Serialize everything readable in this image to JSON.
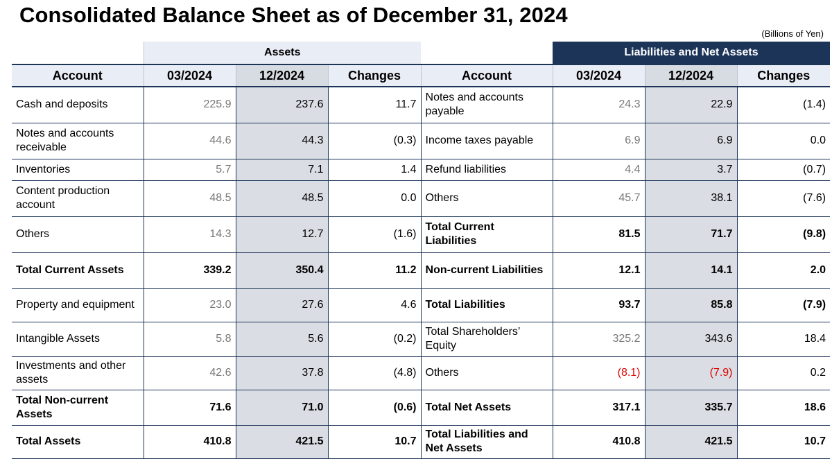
{
  "title": "Consolidated Balance Sheet as of December 31, 2024",
  "unit": "(Billions of Yen)",
  "assets_header": "Assets",
  "liabilities_header": "Liabilities and Net Assets",
  "columns": {
    "account": "Account",
    "prev": "03/2024",
    "cur": "12/2024",
    "changes": "Changes"
  },
  "rows": [
    {
      "a": [
        "Cash and deposits",
        "225.9",
        "237.6",
        "11.7"
      ],
      "l": [
        "Notes and accounts payable",
        "24.3",
        "22.9",
        "(1.4)"
      ]
    },
    {
      "a": [
        "Notes and accounts receivable",
        "44.6",
        "44.3",
        "(0.3)"
      ],
      "l": [
        "Income taxes payable",
        "6.9",
        "6.9",
        "0.0"
      ]
    },
    {
      "a": [
        "Inventories",
        "5.7",
        "7.1",
        "1.4"
      ],
      "l": [
        "Refund liabilities",
        "4.4",
        "3.7",
        "(0.7)"
      ]
    },
    {
      "a": [
        "Content production account",
        "48.5",
        "48.5",
        "0.0"
      ],
      "l": [
        "Others",
        "45.7",
        "38.1",
        "(7.6)"
      ]
    },
    {
      "a": [
        "Others",
        "14.3",
        "12.7",
        "(1.6)"
      ],
      "l": [
        "Total Current Liabilities",
        "81.5",
        "71.7",
        "(9.8)"
      ]
    },
    {
      "a": [
        "Total Current Assets",
        "339.2",
        "350.4",
        "11.2"
      ],
      "l": [
        "Non-current Liabilities",
        "12.1",
        "14.1",
        "2.0"
      ]
    },
    {
      "a": [
        "Property and equipment",
        "23.0",
        "27.6",
        "4.6"
      ],
      "l": [
        "Total Liabilities",
        "93.7",
        "85.8",
        "(7.9)"
      ]
    },
    {
      "a": [
        "Intangible Assets",
        "5.8",
        "5.6",
        "(0.2)"
      ],
      "l": [
        "Total Shareholders’ Equity",
        "325.2",
        "343.6",
        "18.4"
      ]
    },
    {
      "a": [
        "Investments and other assets",
        "42.6",
        "37.8",
        "(4.8)"
      ],
      "l": [
        "Others",
        "(8.1)",
        "(7.9)",
        "0.2"
      ]
    },
    {
      "a": [
        "Total Non-current Assets",
        "71.6",
        "71.0",
        "(0.6)"
      ],
      "l": [
        "Total Net Assets",
        "317.1",
        "335.7",
        "18.6"
      ]
    },
    {
      "a": [
        "Total Assets",
        "410.8",
        "421.5",
        "10.7"
      ],
      "l": [
        "Total Liabilities and Net Assets",
        "410.8",
        "421.5",
        "10.7"
      ]
    }
  ],
  "colors": {
    "navy": "#1c3458",
    "negative": "#e00000"
  }
}
